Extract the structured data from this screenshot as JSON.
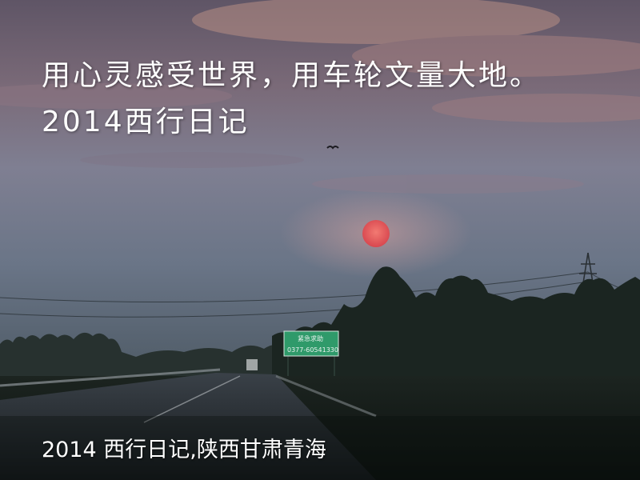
{
  "headline": "用心灵感受世界，用车轮文量大地。2014西行日记",
  "caption": "2014 西行日记,陕西甘肃青海",
  "road_sign": {
    "line1": "紧急求助",
    "line2": "0377-60541330"
  },
  "colors": {
    "sky_top": "#6e5f70",
    "sky_mid": "#7d7f92",
    "sky_low": "#5d6b7d",
    "sun": "#e7585a",
    "treeline": "#1b2521",
    "ground": "#0f1513",
    "sign": "#2f9a6a"
  }
}
